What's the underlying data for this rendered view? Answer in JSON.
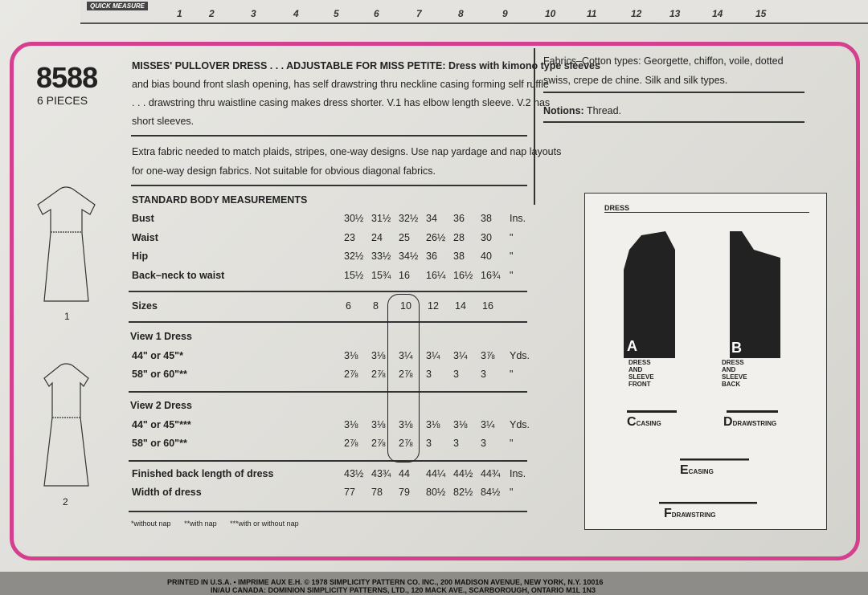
{
  "ruler": {
    "label": "QUICK MEASURE",
    "numbers": [
      "1",
      "2",
      "3",
      "4",
      "5",
      "6",
      "7",
      "8",
      "9",
      "10",
      "11",
      "12",
      "13",
      "14",
      "15"
    ]
  },
  "pattern": {
    "number": "8588",
    "pieces": "6 PIECES"
  },
  "description": {
    "lines": [
      "MISSES' PULLOVER DRESS . . . ADJUSTABLE FOR MISS PETITE: Dress with kimono type sleeves",
      "and bias bound front slash opening, has self drawstring thru neckline casing forming self ruffle",
      ". . . drawstring thru waistline casing makes dress shorter. V.1 has elbow length sleeve. V.2 has",
      "short sleeves."
    ],
    "extra": [
      "Extra fabric needed to match plaids, stripes, one-way designs. Use nap yardage and nap layouts",
      "for one-way design fabrics. Not suitable for obvious diagonal fabrics."
    ]
  },
  "fabrics": {
    "lines": [
      "Fabrics–Cotton types: Georgette, chiffon, voile, dotted",
      "swiss, crepe de chine. Silk and silk types."
    ],
    "notions_label": "Notions:",
    "notions": "Thread."
  },
  "measurements": {
    "title": "STANDARD BODY MEASUREMENTS",
    "rows": [
      {
        "label": "Bust",
        "values": [
          "30½",
          "31½",
          "32½",
          "34",
          "36",
          "38"
        ],
        "unit": "Ins."
      },
      {
        "label": "Waist",
        "values": [
          "23",
          "24",
          "25",
          "26½",
          "28",
          "30"
        ],
        "unit": "\""
      },
      {
        "label": "Hip",
        "values": [
          "32½",
          "33½",
          "34½",
          "36",
          "38",
          "40"
        ],
        "unit": "\""
      },
      {
        "label": "Back–neck to waist",
        "values": [
          "15½",
          "15¾",
          "16",
          "16¼",
          "16½",
          "16¾"
        ],
        "unit": "\""
      }
    ],
    "sizes_label": "Sizes",
    "sizes": [
      "6",
      "8",
      "10",
      "12",
      "14",
      "16"
    ]
  },
  "view1": {
    "title": "View 1 Dress",
    "rows": [
      {
        "label": "44\" or 45\"*",
        "values": [
          "3⅛",
          "3⅛",
          "3¼",
          "3¼",
          "3¼",
          "3⅞"
        ],
        "unit": "Yds."
      },
      {
        "label": "58\" or 60\"**",
        "values": [
          "2⅞",
          "2⅞",
          "2⅞",
          "3",
          "3",
          "3"
        ],
        "unit": "\""
      }
    ]
  },
  "view2": {
    "title": "View 2 Dress",
    "rows": [
      {
        "label": "44\" or 45\"***",
        "values": [
          "3⅛",
          "3⅛",
          "3⅛",
          "3⅛",
          "3⅛",
          "3¼"
        ],
        "unit": "Yds."
      },
      {
        "label": "58\" or 60\"**",
        "values": [
          "2⅞",
          "2⅞",
          "2⅞",
          "3",
          "3",
          "3"
        ],
        "unit": "\""
      }
    ]
  },
  "finished": {
    "rows": [
      {
        "label": "Finished back length of dress",
        "values": [
          "43½",
          "43¾",
          "44",
          "44¼",
          "44½",
          "44¾"
        ],
        "unit": "Ins."
      },
      {
        "label": "Width of dress",
        "values": [
          "77",
          "78",
          "79",
          "80½",
          "82½",
          "84½"
        ],
        "unit": "\""
      }
    ]
  },
  "footnotes": [
    "*without nap",
    "**with nap",
    "***with or without nap"
  ],
  "views": [
    "1",
    "2"
  ],
  "diagram": {
    "title": "DRESS",
    "a_letter": "A",
    "a_text": [
      "DRESS",
      "AND",
      "SLEEVE",
      "FRONT"
    ],
    "b_letter": "B",
    "b_text": [
      "DRESS",
      "AND",
      "SLEEVE",
      "BACK"
    ],
    "c_letter": "C",
    "c_text": "CASING",
    "d_letter": "D",
    "d_text": "DRAWSTRING",
    "e_letter": "E",
    "e_text": "CASING",
    "f_letter": "F",
    "f_text": "DRAWSTRING"
  },
  "footer": {
    "line1": "PRINTED IN U.S.A. • IMPRIME AUX E.H.   © 1978 SIMPLICITY PATTERN CO. INC., 200 MADISON AVENUE, NEW YORK, N.Y. 10016",
    "line2": "IN/AU CANADA: DOMINION SIMPLICITY PATTERNS, LTD., 120 MACK AVE., SCARBOROUGH, ONTARIO M1L 1N3"
  },
  "colors": {
    "border": "#d4408e",
    "ink": "#222222"
  }
}
